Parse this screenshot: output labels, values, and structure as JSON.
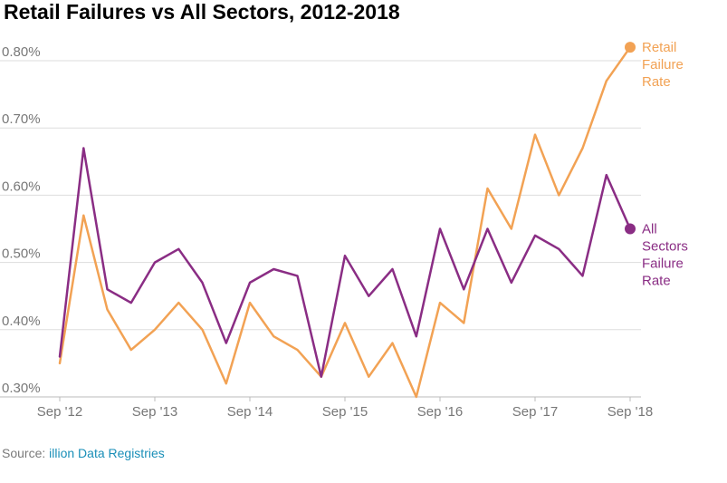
{
  "title": "Retail Failures vs All Sectors, 2012-2018",
  "source": {
    "prefix": "Source: ",
    "link_text": "illion Data Registries"
  },
  "colors": {
    "retail": "#f2a254",
    "all": "#8a2d84",
    "grid": "#dddddd",
    "axis": "#bbbbbb",
    "text": "#777777"
  },
  "chart_data": {
    "type": "line",
    "title": "Retail Failures vs All Sectors, 2012-2018",
    "xlabel": "",
    "ylabel": "",
    "ylim": [
      0.3,
      0.8
    ],
    "y_ticks": [
      "0.30%",
      "0.40%",
      "0.50%",
      "0.60%",
      "0.70%",
      "0.80%"
    ],
    "x_ticks": [
      "Sep '12",
      "Sep '13",
      "Sep '14",
      "Sep '15",
      "Sep '16",
      "Sep '17",
      "Sep '18"
    ],
    "x": [
      "Sep '12",
      "Dec '12",
      "Mar '13",
      "Jun '13",
      "Sep '13",
      "Dec '13",
      "Mar '14",
      "Jun '14",
      "Sep '14",
      "Dec '14",
      "Mar '15",
      "Jun '15",
      "Sep '15",
      "Dec '15",
      "Mar '16",
      "Jun '16",
      "Sep '16",
      "Dec '16",
      "Mar '17",
      "Jun '17",
      "Sep '17",
      "Dec '17",
      "Mar '18",
      "Jun '18",
      "Sep '18"
    ],
    "grid": true,
    "series": [
      {
        "name": "Retail Failure Rate",
        "label_lines": [
          "Retail",
          "Failure",
          "Rate"
        ],
        "values": [
          0.35,
          0.57,
          0.43,
          0.37,
          0.4,
          0.44,
          0.4,
          0.32,
          0.44,
          0.39,
          0.37,
          0.33,
          0.41,
          0.33,
          0.38,
          0.3,
          0.44,
          0.41,
          0.61,
          0.55,
          0.69,
          0.6,
          0.67,
          0.77,
          0.82
        ]
      },
      {
        "name": "All Sectors Failure Rate",
        "label_lines": [
          "All",
          "Sectors",
          "Failure",
          "Rate"
        ],
        "values": [
          0.36,
          0.67,
          0.46,
          0.44,
          0.5,
          0.52,
          0.47,
          0.38,
          0.47,
          0.49,
          0.48,
          0.33,
          0.51,
          0.45,
          0.49,
          0.39,
          0.55,
          0.46,
          0.55,
          0.47,
          0.54,
          0.52,
          0.48,
          0.63,
          0.55
        ]
      }
    ]
  }
}
